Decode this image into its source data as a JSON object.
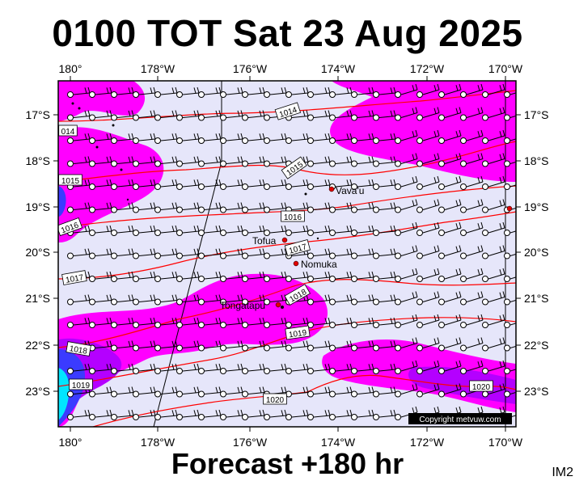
{
  "title": "0100 TOT Sat 23 Aug 2025",
  "subtitle": "Forecast +180 hr",
  "corner_label": "IM2",
  "copyright": "Copyright metvuw.com",
  "axes": {
    "lon_labels": [
      "180°",
      "178°W",
      "176°W",
      "174°W",
      "172°W",
      "170°W"
    ],
    "lat_labels": [
      "17°S",
      "18°S",
      "19°S",
      "20°S",
      "21°S",
      "22°S",
      "23°S"
    ]
  },
  "colors": {
    "sea": "#e6e6fa",
    "rain_light": "#ff00ff",
    "rain_moderate": "#b400ff",
    "rain_heavy": "#3b3bff",
    "rain_extreme": "#00e5ff",
    "isobar": "#ff0000",
    "place_marker": "#e00000"
  },
  "isobar_labels": [
    "1014",
    "014",
    "1015",
    "1015",
    "1016",
    "1016",
    "1017",
    "1017",
    "1018",
    "1018",
    "1019",
    "1019",
    "1020",
    "1020"
  ],
  "places": [
    {
      "name": "Vava'u"
    },
    {
      "name": "Tofua"
    },
    {
      "name": "Nomuka"
    },
    {
      "name": "Tongatapu"
    }
  ]
}
